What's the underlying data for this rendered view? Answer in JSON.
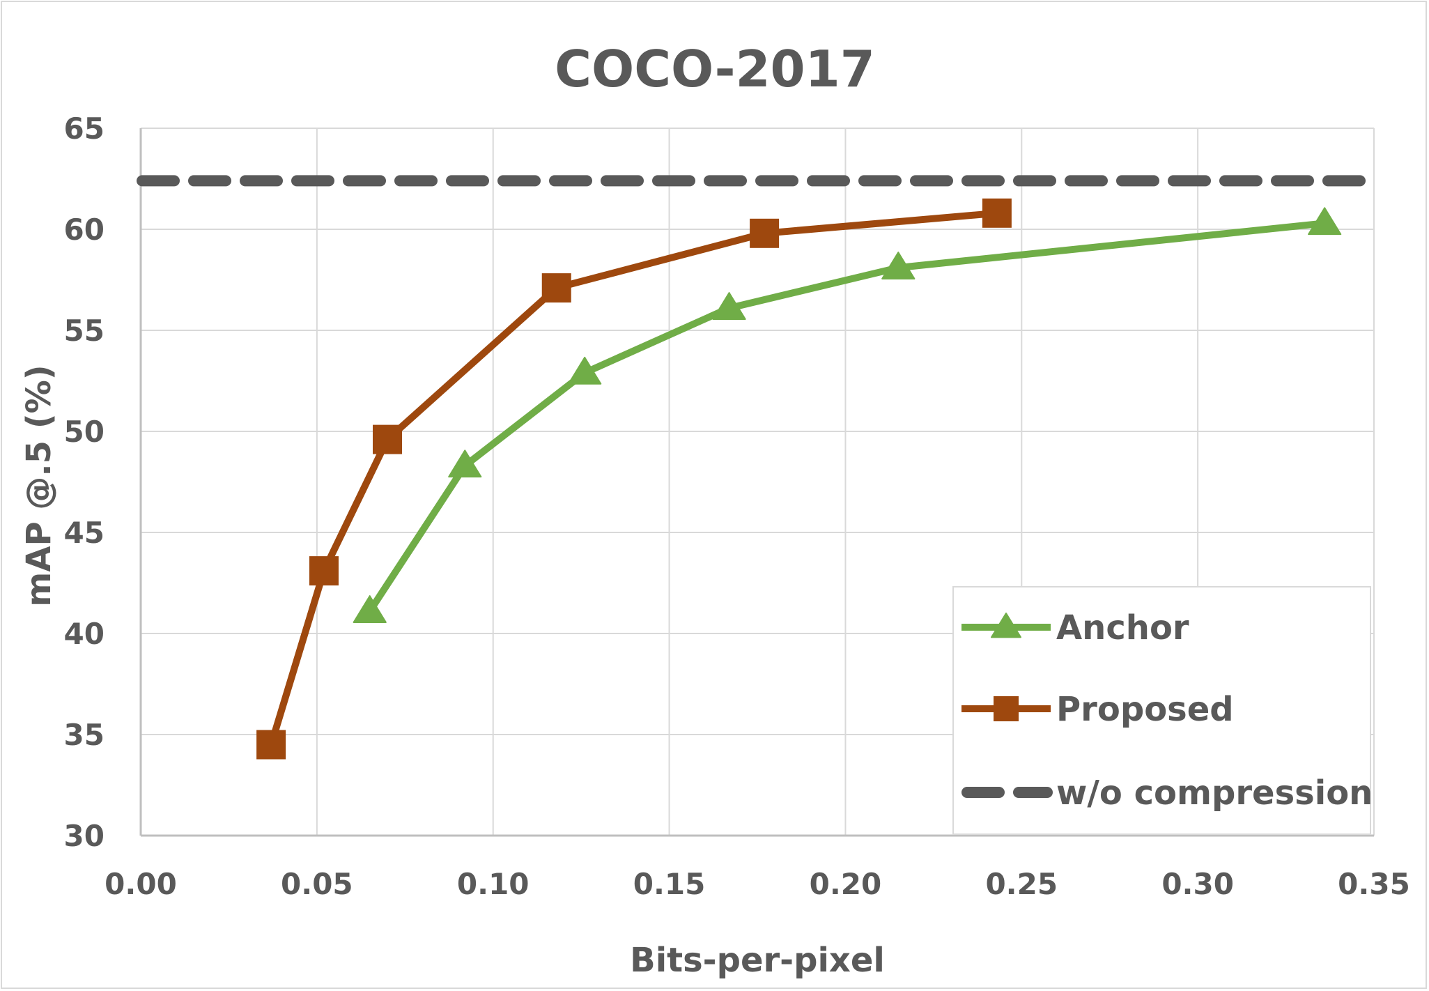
{
  "chart_data": {
    "type": "line",
    "title": "COCO-2017",
    "xlabel": "Bits-per-pixel",
    "ylabel": "mAP @.5 (%)",
    "xlim": [
      0,
      0.35
    ],
    "ylim": [
      30,
      65
    ],
    "xticks": [
      "0.00",
      "0.05",
      "0.10",
      "0.15",
      "0.20",
      "0.25",
      "0.30",
      "0.35"
    ],
    "yticks": [
      "30",
      "35",
      "40",
      "45",
      "50",
      "55",
      "60",
      "65"
    ],
    "grid": true,
    "legend_position": "bottom-right",
    "series": [
      {
        "name": "Anchor",
        "color": "#70ad47",
        "marker": "triangle",
        "x": [
          0.065,
          0.092,
          0.126,
          0.167,
          0.215,
          0.336
        ],
        "y": [
          41.1,
          48.3,
          52.9,
          56.1,
          58.1,
          60.3
        ]
      },
      {
        "name": "Proposed",
        "color": "#9e480e",
        "marker": "square",
        "x": [
          0.037,
          0.052,
          0.07,
          0.118,
          0.177,
          0.243
        ],
        "y": [
          34.5,
          43.1,
          49.6,
          57.1,
          59.8,
          60.8
        ]
      },
      {
        "name": "w/o compression",
        "color": "#595959",
        "style": "dashed",
        "y": 62.4
      }
    ]
  }
}
